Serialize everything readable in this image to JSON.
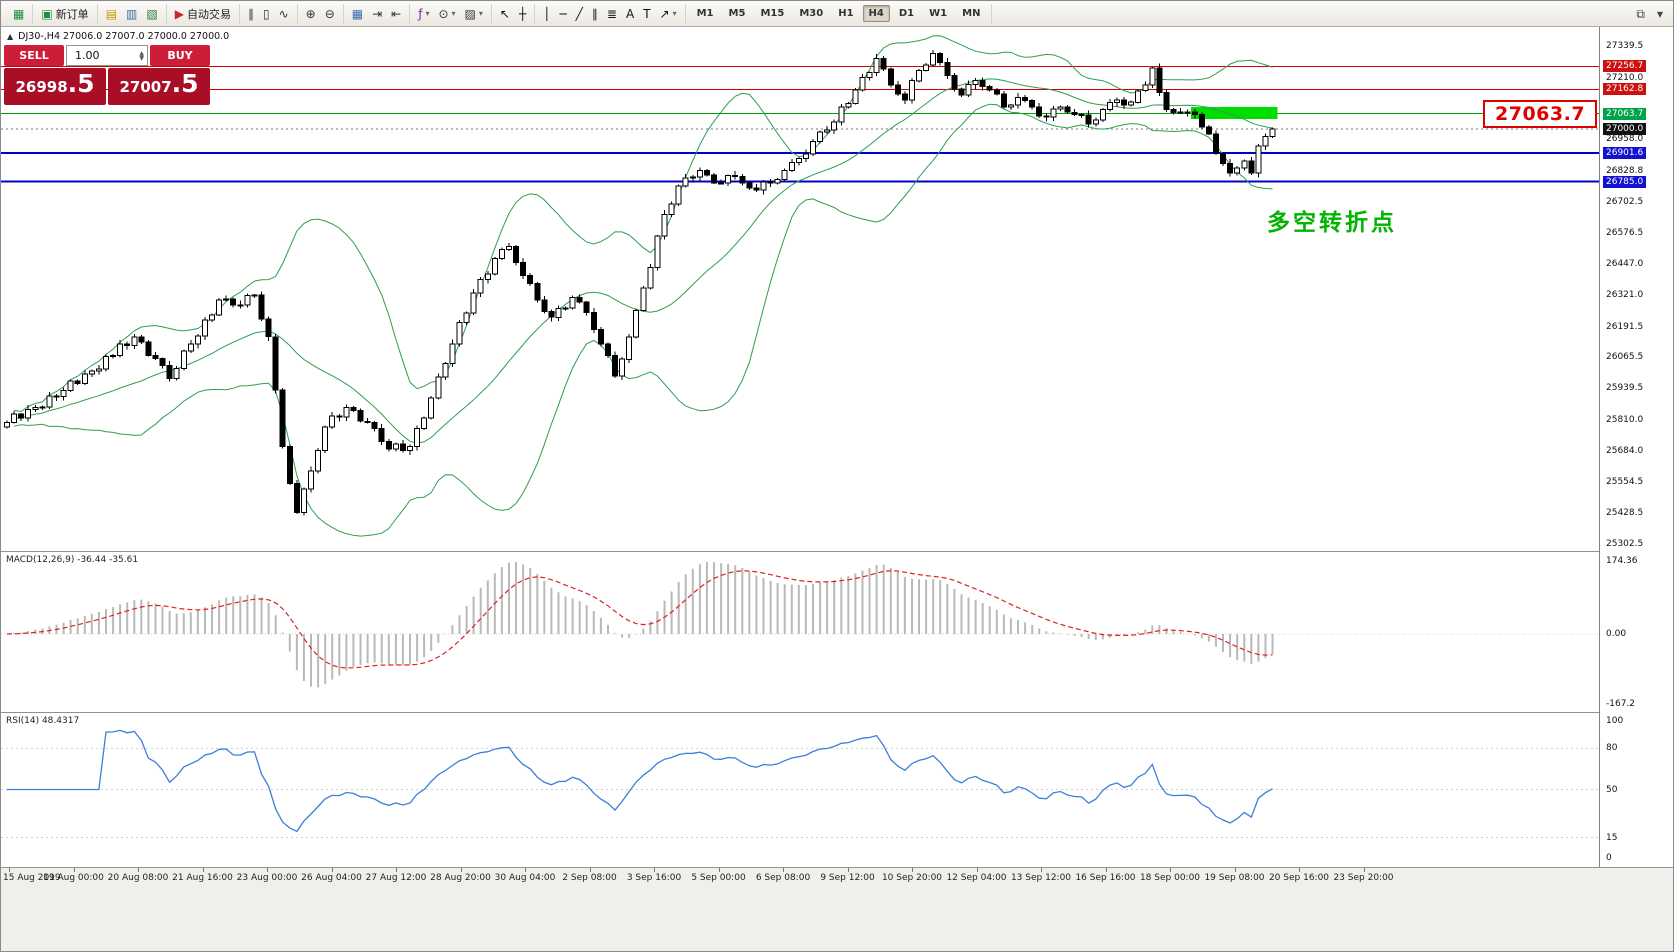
{
  "icons": {
    "collapse": "▲",
    "spin_up": "▲",
    "spin_down": "▼"
  },
  "toolbar": {
    "groups": [
      {
        "items": [
          {
            "btn": "app-button",
            "icon": "app-icon",
            "glyph": "▦",
            "color": "#1e8e3e"
          }
        ]
      },
      {
        "items": [
          {
            "btn": "new-order-button",
            "icon": "new-order-icon",
            "glyph": "▣",
            "color": "#1e8e3e",
            "label": "新订单"
          }
        ]
      },
      {
        "items": [
          {
            "btn": "market-watch-button",
            "icon": "market-watch-icon",
            "glyph": "▤",
            "color": "#c99700"
          },
          {
            "btn": "data-window-button",
            "icon": "data-window-icon",
            "glyph": "▥",
            "color": "#3a6ea5"
          },
          {
            "btn": "navigator-button",
            "icon": "navigator-icon",
            "glyph": "▧",
            "color": "#2e7d32"
          }
        ]
      },
      {
        "items": [
          {
            "btn": "auto-trading-button",
            "icon": "auto-trading-icon",
            "glyph": "▶",
            "color": "#c62828",
            "label": "自动交易"
          }
        ]
      },
      {
        "items": [
          {
            "btn": "bar-chart-button",
            "icon": "bar-chart-icon",
            "glyph": "∥",
            "color": "#333333"
          },
          {
            "btn": "candlestick-chart-button",
            "icon": "candlestick-chart-icon",
            "glyph": "▯",
            "color": "#333333"
          },
          {
            "btn": "line-chart-button",
            "icon": "line-chart-icon",
            "glyph": "∿",
            "color": "#333333"
          }
        ]
      },
      {
        "items": [
          {
            "btn": "zoom-in-button",
            "icon": "zoom-in-icon",
            "glyph": "⊕",
            "color": "#333333"
          },
          {
            "btn": "zoom-out-button",
            "icon": "zoom-out-icon",
            "glyph": "⊖",
            "color": "#333333"
          }
        ]
      },
      {
        "items": [
          {
            "btn": "tile-windows-button",
            "icon": "tile-windows-icon",
            "glyph": "▦",
            "color": "#3a6ea5"
          },
          {
            "btn": "auto-scroll-button",
            "icon": "auto-scroll-icon",
            "glyph": "⇥",
            "color": "#333333"
          },
          {
            "btn": "chart-shift-button",
            "icon": "chart-shift-icon",
            "glyph": "⇤",
            "color": "#333333"
          }
        ]
      },
      {
        "items": [
          {
            "btn": "indicators-button",
            "icon": "indicators-icon",
            "glyph": "ƒ",
            "color": "#7b1fa2",
            "caret": true
          },
          {
            "btn": "periods-button",
            "icon": "periods-icon",
            "glyph": "⊙",
            "color": "#333333",
            "caret": true
          },
          {
            "btn": "templates-button",
            "icon": "templates-icon",
            "glyph": "▨",
            "color": "#333333",
            "caret": true
          }
        ]
      },
      {
        "items": [
          {
            "btn": "cursor-button",
            "icon": "cursor-icon",
            "glyph": "↖",
            "color": "#111111"
          },
          {
            "btn": "crosshair-button",
            "icon": "crosshair-icon",
            "glyph": "┼",
            "color": "#111111"
          }
        ]
      },
      {
        "items": [
          {
            "btn": "vertical-line-button",
            "icon": "vertical-line-icon",
            "glyph": "│",
            "color": "#111111"
          },
          {
            "btn": "horizontal-line-button",
            "icon": "horizontal-line-icon",
            "glyph": "─",
            "color": "#111111"
          },
          {
            "btn": "trendline-button",
            "icon": "trendline-icon",
            "glyph": "╱",
            "color": "#111111"
          },
          {
            "btn": "channel-button",
            "icon": "channel-icon",
            "glyph": "∥",
            "color": "#111111"
          },
          {
            "btn": "fibonacci-button",
            "icon": "fibonacci-icon",
            "glyph": "≣",
            "color": "#111111"
          },
          {
            "btn": "text-button",
            "icon": "text-icon",
            "glyph": "A",
            "color": "#111111"
          },
          {
            "btn": "text-label-button",
            "icon": "text-label-icon",
            "glyph": "T",
            "color": "#111111"
          },
          {
            "btn": "arrows-button",
            "icon": "arrows-icon",
            "glyph": "↗",
            "color": "#111111",
            "caret": true
          }
        ]
      }
    ],
    "timeframes": {
      "items": [
        "M1",
        "M5",
        "M15",
        "M30",
        "H1",
        "H4",
        "D1",
        "W1",
        "MN"
      ],
      "active": "H4"
    },
    "right_icons": [
      {
        "btn": "arrange-windows-button",
        "icon": "arrange-windows-icon",
        "glyph": "⧉",
        "color": "#444444"
      },
      {
        "btn": "toolbar-options-button",
        "icon": "chevron-down-icon",
        "glyph": "▾",
        "color": "#444444"
      }
    ]
  },
  "trade_panel": {
    "sell_label": "SELL",
    "buy_label": "BUY",
    "volume": "1.00",
    "sell_price_main": "26998",
    "sell_price_big": ".5",
    "buy_price_main": "27007",
    "buy_price_big": ".5"
  },
  "chart_data": {
    "type": "candlestick",
    "symbol": "DJ30-",
    "timeframe": "H4",
    "ohlc_header": "DJ30-,H4  27006.0 27007.0 27000.0 27000.0",
    "first_open": 25780,
    "closes": [
      25800,
      25833,
      25818,
      25853,
      25860,
      25862,
      25907,
      25906,
      25930,
      25968,
      25958,
      25998,
      26010,
      26017,
      26069,
      26074,
      26121,
      26115,
      26150,
      26128,
      26074,
      26060,
      26032,
      25980,
      26021,
      26091,
      26120,
      26153,
      26218,
      26239,
      26300,
      26305,
      26281,
      26280,
      26318,
      26320,
      26223,
      26150,
      25933,
      25700,
      25549,
      25430,
      25527,
      25600,
      25684,
      25780,
      25825,
      25821,
      25860,
      25848,
      25804,
      25800,
      25775,
      25721,
      25690,
      25711,
      25685,
      25700,
      25775,
      25817,
      25900,
      25985,
      26041,
      26120,
      26208,
      26248,
      26330,
      26385,
      26407,
      26470,
      26507,
      26520,
      26454,
      26400,
      26368,
      26300,
      26253,
      26230,
      26265,
      26267,
      26310,
      26292,
      26250,
      26179,
      26120,
      26073,
      25990,
      26058,
      26150,
      26258,
      26350,
      26434,
      26562,
      26650,
      26694,
      26768,
      26800,
      26803,
      26830,
      26813,
      26780,
      26779,
      26810,
      26807,
      26780,
      26759,
      26750,
      26783,
      26780,
      26793,
      26830,
      26863,
      26880,
      26899,
      26950,
      26989,
      26997,
      27030,
      27091,
      27105,
      27160,
      27211,
      27231,
      27290,
      27247,
      27180,
      27144,
      27120,
      27198,
      27240,
      27263,
      27310,
      27273,
      27220,
      27164,
      27140,
      27182,
      27200,
      27174,
      27160,
      27143,
      27090,
      27098,
      27130,
      27118,
      27090,
      27054,
      27050,
      27082,
      27090,
      27069,
      27060,
      27058,
      27020,
      27038,
      27080,
      27108,
      27120,
      27099,
      27110,
      27157,
      27180,
      27250,
      27150,
      27080,
      27069,
      27070,
      27071,
      27060,
      27008,
      26980,
      26900,
      26860,
      26820,
      26840,
      26870,
      26820,
      26930,
      26970,
      27000
    ],
    "y_range": {
      "top": 27418,
      "bottom": 25273
    },
    "hlines": [
      {
        "price": 27256.7,
        "color": "#d40000",
        "width": 1
      },
      {
        "price": 27162.8,
        "color": "#d40000",
        "width": 1
      },
      {
        "price": 27063.7,
        "color": "#00a000",
        "width": 1
      },
      {
        "price": 26901.6,
        "color": "#0000cd",
        "width": 2
      },
      {
        "price": 26785.0,
        "color": "#0000cd",
        "width": 2
      }
    ],
    "current_price_line": {
      "price": 27000.0,
      "color": "#777777",
      "style": "dotted"
    },
    "indicators": {
      "bollinger": {
        "period": 20,
        "deviation": 2,
        "color": "#2f9e4f"
      },
      "macd": {
        "label": "MACD(12,26,9) -36.44 -35.61",
        "fast": 12,
        "slow": 26,
        "signal": 9,
        "axis_labels": [
          "174.36",
          "0.00",
          "-167.2"
        ],
        "histogram_color": "#b9b9b9",
        "signal_color": "#e02020"
      },
      "rsi": {
        "label": "RSI(14) 48.4317",
        "period": 14,
        "line_color": "#3d7edb",
        "axis_labels": [
          "100",
          "80",
          "50",
          "15",
          "0"
        ],
        "level_lines": [
          80,
          50,
          15
        ]
      }
    },
    "price_axis": {
      "labels": [
        {
          "value": "27339.5",
          "type": "plain"
        },
        {
          "value": "27256.7",
          "type": "red"
        },
        {
          "value": "27210.0",
          "type": "plain"
        },
        {
          "value": "27162.8",
          "type": "red"
        },
        {
          "value": "27063.7",
          "type": "green"
        },
        {
          "value": "27000.0",
          "type": "black"
        },
        {
          "value": "26958.0",
          "type": "plain"
        },
        {
          "value": "26901.6",
          "type": "blue"
        },
        {
          "value": "26828.8",
          "type": "plain"
        },
        {
          "value": "26785.0",
          "type": "blue"
        },
        {
          "value": "26702.5",
          "type": "plain"
        },
        {
          "value": "26576.5",
          "type": "plain"
        },
        {
          "value": "26447.0",
          "type": "plain"
        },
        {
          "value": "26321.0",
          "type": "plain"
        },
        {
          "value": "26191.5",
          "type": "plain"
        },
        {
          "value": "26065.5",
          "type": "plain"
        },
        {
          "value": "25939.5",
          "type": "plain"
        },
        {
          "value": "25810.0",
          "type": "plain"
        },
        {
          "value": "25684.0",
          "type": "plain"
        },
        {
          "value": "25554.5",
          "type": "plain"
        },
        {
          "value": "25428.5",
          "type": "plain"
        },
        {
          "value": "25302.5",
          "type": "plain"
        }
      ]
    },
    "annotations": {
      "green_zone": {
        "from_index": 168,
        "to_index": 179,
        "from_price": 27090,
        "to_price": 27042,
        "color": "#00dd00"
      },
      "turning_point_text": {
        "text": "多空转折点",
        "color": "#00b400"
      },
      "price_tag": {
        "text": "27063.7",
        "color": "#e00000"
      }
    },
    "time_axis": [
      "15 Aug 2019",
      "19 Aug 00:00",
      "20 Aug 08:00",
      "21 Aug 16:00",
      "23 Aug 00:00",
      "26 Aug 04:00",
      "27 Aug 12:00",
      "28 Aug 20:00",
      "30 Aug 04:00",
      "2 Sep 08:00",
      "3 Sep 16:00",
      "5 Sep 00:00",
      "6 Sep 08:00",
      "9 Sep 12:00",
      "10 Sep 20:00",
      "12 Sep 04:00",
      "13 Sep 12:00",
      "16 Sep 16:00",
      "18 Sep 00:00",
      "19 Sep 08:00",
      "20 Sep 16:00",
      "23 Sep 20:00"
    ]
  }
}
